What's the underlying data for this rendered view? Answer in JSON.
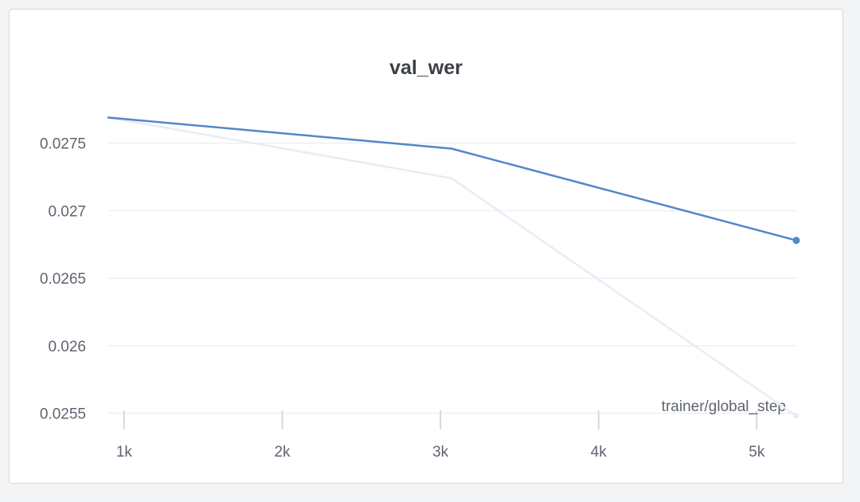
{
  "chart_data": {
    "type": "line",
    "title": "val_wer",
    "xlabel": "trainer/global_step",
    "ylabel": "",
    "xlim": [
      900,
      5250
    ],
    "ylim": [
      0.02545,
      0.02787
    ],
    "xticks": [
      1000,
      2000,
      3000,
      4000,
      5000
    ],
    "xtick_labels": [
      "1k",
      "2k",
      "3k",
      "4k",
      "5k"
    ],
    "yticks": [
      0.0255,
      0.026,
      0.0265,
      0.027,
      0.0275
    ],
    "ytick_labels": [
      "0.0255",
      "0.026",
      "0.0265",
      "0.027",
      "0.0275"
    ],
    "grid": true,
    "series": [
      {
        "role": "raw",
        "color": "#e6edf7",
        "x": [
          900,
          3070,
          5250
        ],
        "y": [
          0.02769,
          0.02724,
          0.02548
        ]
      },
      {
        "role": "smoothed",
        "color": "#5387c9",
        "x": [
          900,
          3070,
          5250
        ],
        "y": [
          0.02769,
          0.02746,
          0.02678
        ]
      }
    ]
  }
}
